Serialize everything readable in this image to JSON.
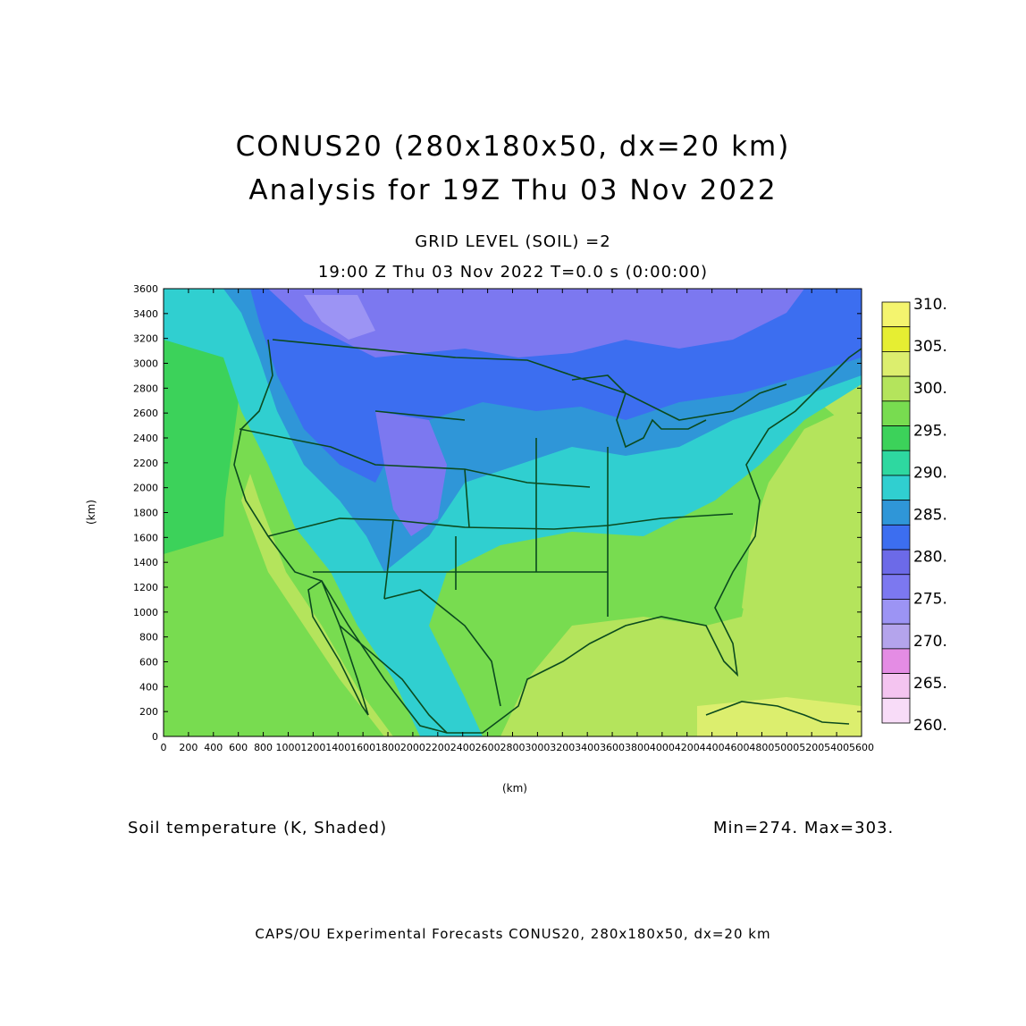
{
  "title": {
    "line1": "CONUS20 (280x180x50, dx=20 km)",
    "line2": "Analysis for 19Z Thu 03 Nov 2022"
  },
  "subtitle": {
    "line1": "GRID LEVEL (SOIL) =2",
    "line2": "19:00 Z Thu 03 Nov 2022    T=0.0 s (0:00:00)"
  },
  "field_label": "Soil temperature (K, Shaded)",
  "min_max": "Min=274.  Max=303.",
  "footer": "CAPS/OU Experimental Forecasts  CONUS20, 280x180x50, dx=20 km",
  "axes": {
    "xlabel": "(km)",
    "ylabel": "(km)",
    "x_ticks": [
      "0",
      "200",
      "400",
      "600",
      "800",
      "1000",
      "1200",
      "1400",
      "1600",
      "1800",
      "2000",
      "2200",
      "2400",
      "2600",
      "2800",
      "3000",
      "3200",
      "3400",
      "3600",
      "3800",
      "4000",
      "4200",
      "4400",
      "4600",
      "4800",
      "5000",
      "5200",
      "5400",
      "5600"
    ],
    "y_ticks": [
      "0",
      "200",
      "400",
      "600",
      "800",
      "1000",
      "1200",
      "1400",
      "1600",
      "1800",
      "2000",
      "2200",
      "2400",
      "2600",
      "2800",
      "3000",
      "3200",
      "3400",
      "3600"
    ],
    "x_range": [
      0,
      5600
    ],
    "y_range": [
      0,
      3600
    ]
  },
  "colorbar": {
    "labels": [
      "310.",
      "305.",
      "300.",
      "295.",
      "290.",
      "285.",
      "280.",
      "275.",
      "270.",
      "265.",
      "260."
    ],
    "colors": [
      "#f4f46e",
      "#e6ee32",
      "#dcee6e",
      "#b4e45c",
      "#78dc50",
      "#3cd25a",
      "#2ed8a0",
      "#30cfd0",
      "#2f96d8",
      "#3c6ef0",
      "#6c6ae8",
      "#7c78f0",
      "#9c94f4",
      "#b4a4ec",
      "#e48ce4",
      "#f4c4f0",
      "#f8dcf8"
    ]
  },
  "map_colors": {
    "outline": "#0b4a1e",
    "warm_ocean": "#b4e45c",
    "mid_ocean": "#78dc50",
    "cool_water": "#3cd25a",
    "cyan": "#30cfd0",
    "blue1": "#2f96d8",
    "blue2": "#3c6ef0",
    "purple": "#7c78f0",
    "violet": "#9c94f4",
    "lightgreen": "#dcee6e"
  }
}
